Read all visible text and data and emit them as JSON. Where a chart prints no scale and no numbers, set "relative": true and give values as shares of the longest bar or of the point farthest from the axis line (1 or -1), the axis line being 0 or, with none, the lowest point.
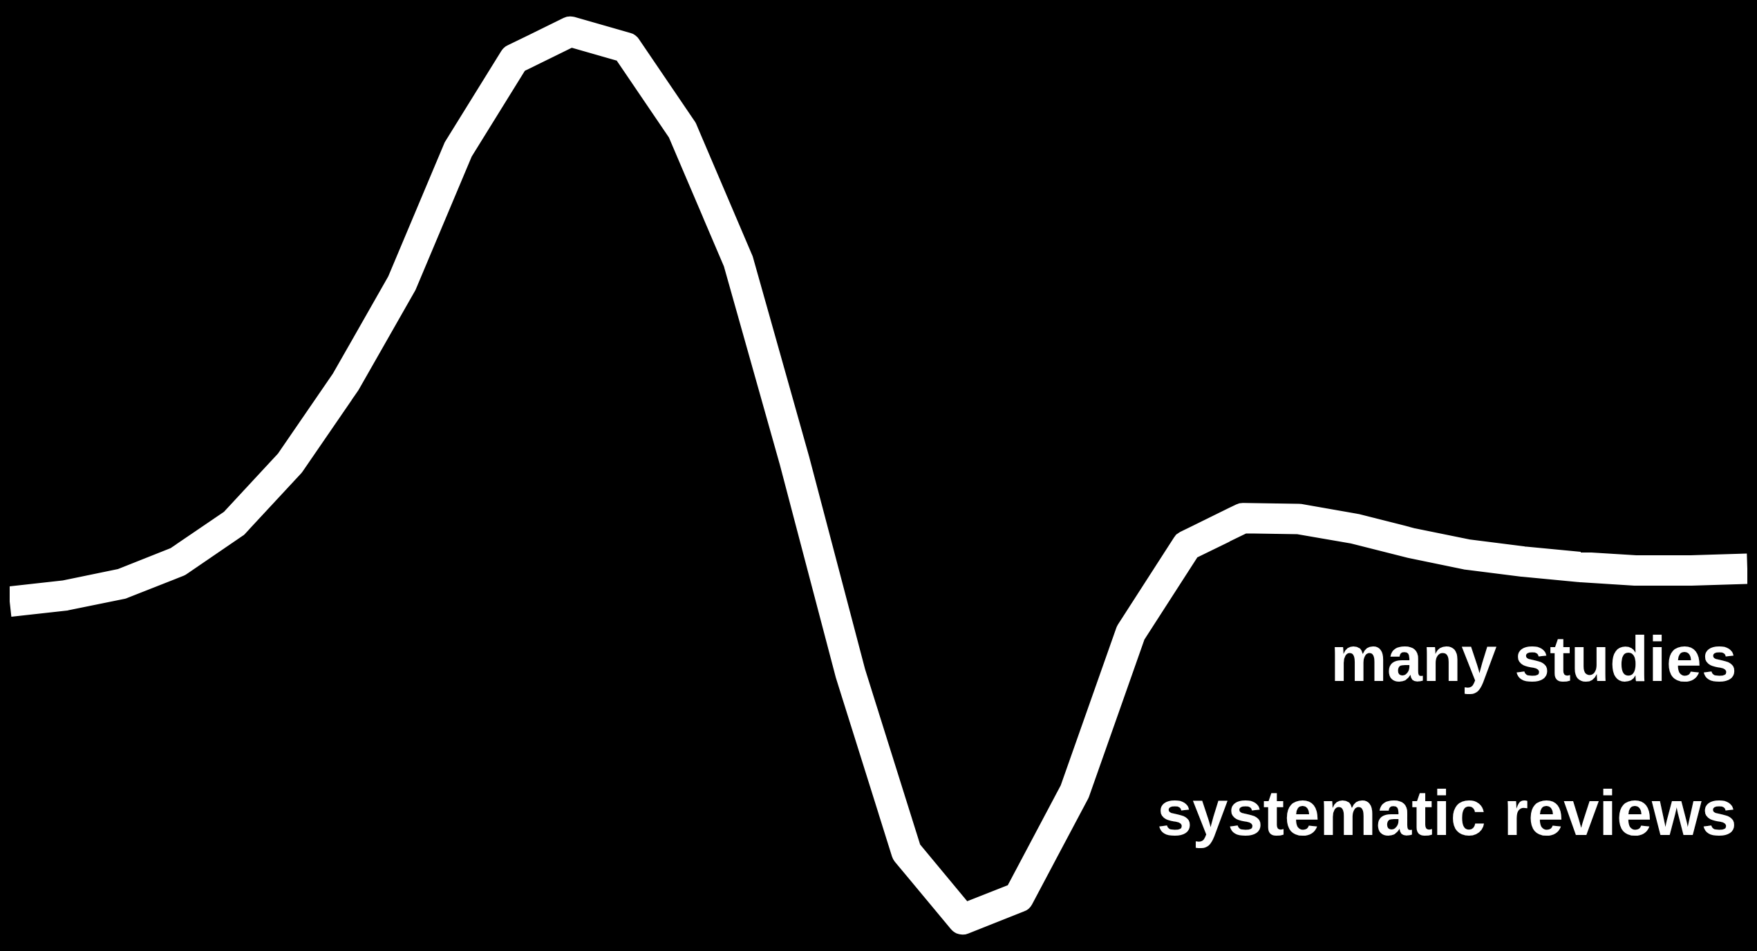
{
  "chart_data": {
    "type": "line",
    "relative": true,
    "categories": [
      null,
      null,
      null,
      null,
      null,
      null,
      null,
      null,
      null,
      null,
      null,
      null,
      null,
      null,
      null,
      null,
      null,
      null,
      null,
      null,
      null,
      null,
      null,
      null,
      null,
      null,
      null,
      null,
      null,
      null,
      null,
      null
    ],
    "series": [
      {
        "color": "#ffffff",
        "values": [
          0.358,
          0.365,
          0.378,
          0.403,
          0.446,
          0.514,
          0.606,
          0.717,
          0.867,
          0.969,
          1,
          0.982,
          0.889,
          0.741,
          0.517,
          0.277,
          0.076,
          0,
          0.025,
          0.144,
          0.323,
          0.421,
          0.452,
          0.451,
          0.44,
          0.424,
          0.411,
          0.403,
          0.397,
          0.393,
          0.393,
          0.395
        ]
      }
    ],
    "annotations": [
      "many studies",
      "systematic reviews"
    ],
    "grid": false,
    "marker": "none",
    "line_style": "solid"
  }
}
